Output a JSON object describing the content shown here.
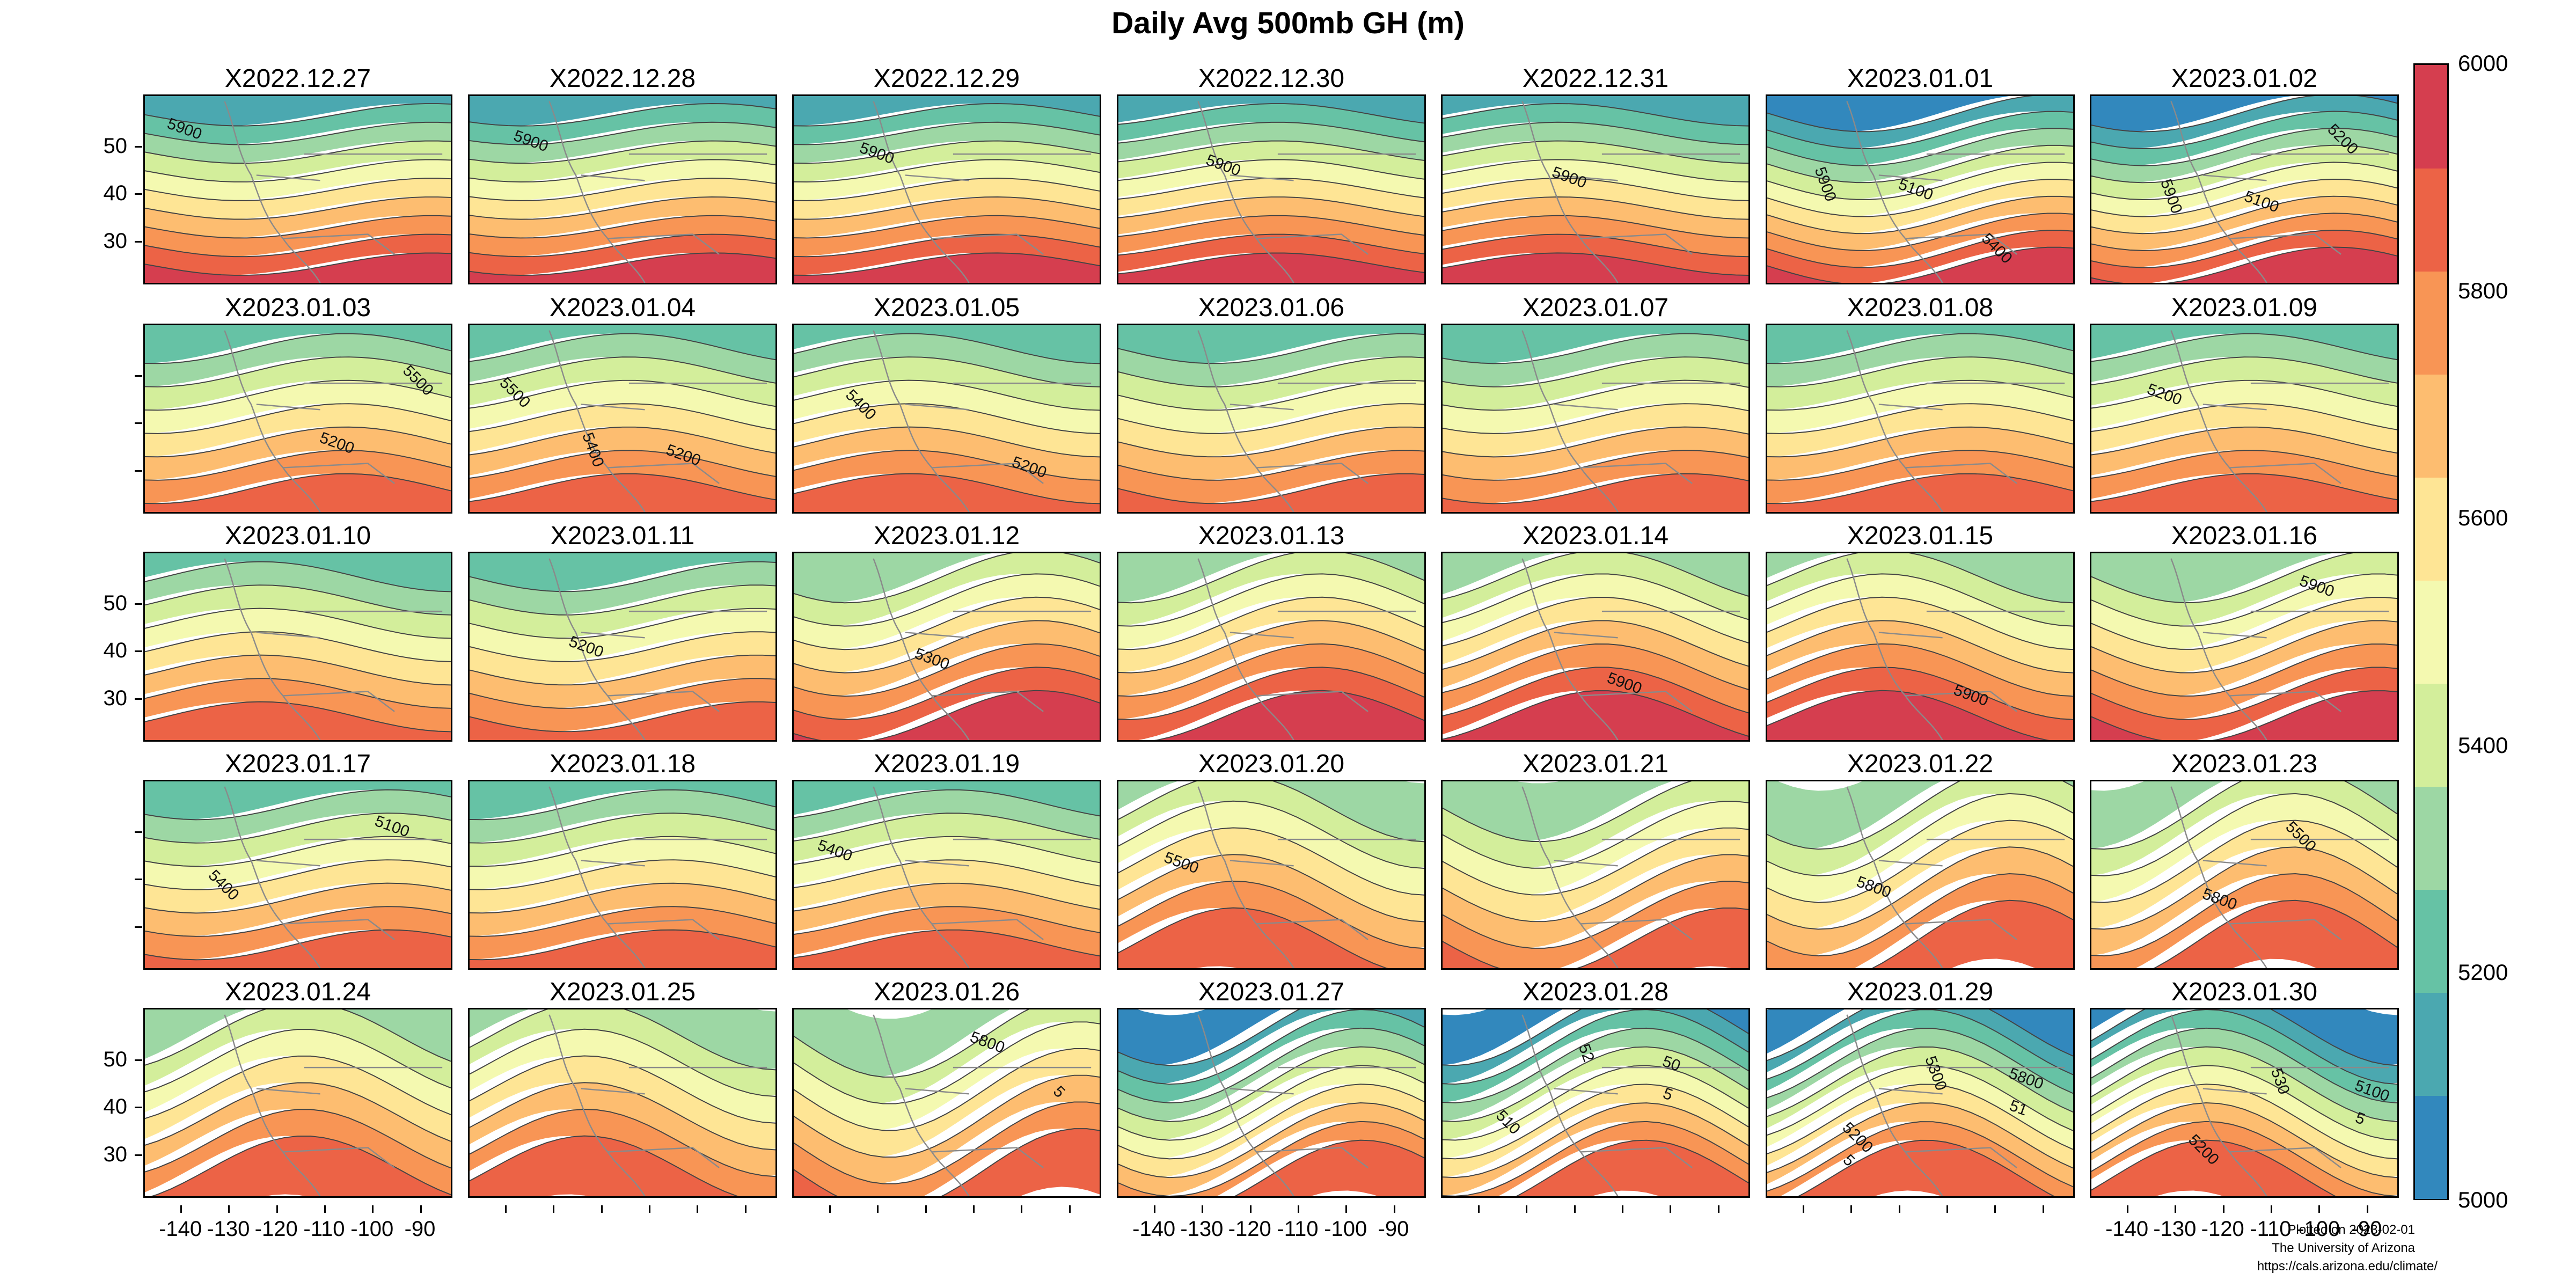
{
  "title": "Daily Avg 500mb GH (m)",
  "panels": [
    {
      "label": "X2022.12.27",
      "style": 0,
      "contours": [
        "5900"
      ]
    },
    {
      "label": "X2022.12.28",
      "style": 0,
      "contours": [
        "5900"
      ]
    },
    {
      "label": "X2022.12.29",
      "style": 0,
      "contours": [
        "5900"
      ]
    },
    {
      "label": "X2022.12.30",
      "style": 0,
      "contours": [
        "5900"
      ]
    },
    {
      "label": "X2022.12.31",
      "style": 0,
      "contours": [
        "5900"
      ]
    },
    {
      "label": "X2023.01.01",
      "style": 1,
      "contours": [
        "5100",
        "5400",
        "5900"
      ]
    },
    {
      "label": "X2023.01.02",
      "style": 1,
      "contours": [
        "5100",
        "5200",
        "5900"
      ]
    },
    {
      "label": "X2023.01.03",
      "style": 2,
      "contours": [
        "5200",
        "5500"
      ]
    },
    {
      "label": "X2023.01.04",
      "style": 2,
      "contours": [
        "5200",
        "5500",
        "5400"
      ]
    },
    {
      "label": "X2023.01.05",
      "style": 2,
      "contours": [
        "5200",
        "5400"
      ]
    },
    {
      "label": "X2023.01.06",
      "style": 2,
      "contours": []
    },
    {
      "label": "X2023.01.07",
      "style": 2,
      "contours": []
    },
    {
      "label": "X2023.01.08",
      "style": 2,
      "contours": []
    },
    {
      "label": "X2023.01.09",
      "style": 2,
      "contours": [
        "5200"
      ]
    },
    {
      "label": "X2023.01.10",
      "style": 2,
      "contours": []
    },
    {
      "label": "X2023.01.11",
      "style": 2,
      "contours": [
        "5200"
      ]
    },
    {
      "label": "X2023.01.12",
      "style": 3,
      "contours": [
        "5300"
      ]
    },
    {
      "label": "X2023.01.13",
      "style": 3,
      "contours": []
    },
    {
      "label": "X2023.01.14",
      "style": 3,
      "contours": [
        "5900"
      ]
    },
    {
      "label": "X2023.01.15",
      "style": 3,
      "contours": [
        "5900"
      ]
    },
    {
      "label": "X2023.01.16",
      "style": 3,
      "contours": [
        "5900"
      ]
    },
    {
      "label": "X2023.01.17",
      "style": 2,
      "contours": [
        "5100",
        "5400"
      ]
    },
    {
      "label": "X2023.01.18",
      "style": 2,
      "contours": []
    },
    {
      "label": "X2023.01.19",
      "style": 2,
      "contours": [
        "5400"
      ]
    },
    {
      "label": "X2023.01.20",
      "style": 4,
      "contours": [
        "5500"
      ]
    },
    {
      "label": "X2023.01.21",
      "style": 4,
      "contours": []
    },
    {
      "label": "X2023.01.22",
      "style": 5,
      "contours": [
        "5800"
      ]
    },
    {
      "label": "X2023.01.23",
      "style": 5,
      "contours": [
        "5800",
        "5500"
      ]
    },
    {
      "label": "X2023.01.24",
      "style": 4,
      "contours": []
    },
    {
      "label": "X2023.01.25",
      "style": 4,
      "contours": []
    },
    {
      "label": "X2023.01.26",
      "style": 5,
      "contours": [
        "5800",
        "5"
      ]
    },
    {
      "label": "X2023.01.27",
      "style": 6,
      "contours": []
    },
    {
      "label": "X2023.01.28",
      "style": 6,
      "contours": [
        "50",
        "510",
        "52",
        "5"
      ]
    },
    {
      "label": "X2023.01.29",
      "style": 6,
      "contours": [
        "5800",
        "5200",
        "5300",
        "51",
        "5"
      ]
    },
    {
      "label": "X2023.01.30",
      "style": 6,
      "contours": [
        "5100",
        "5200",
        "530",
        "5"
      ]
    }
  ],
  "y_ticks": [
    "50",
    "40",
    "30"
  ],
  "x_ticks": [
    "-140",
    "-130",
    "-120",
    "-110",
    "-100",
    "-90"
  ],
  "colorbar": {
    "min": 5000,
    "max": 6000,
    "labels": [
      "6000",
      "5800",
      "5600",
      "5400",
      "5200",
      "5000"
    ],
    "colors": [
      "#3288bd",
      "#4ba8b0",
      "#66c2a5",
      "#9dd7a4",
      "#d3ee9b",
      "#f4f9b0",
      "#fee595",
      "#fdbd70",
      "#f89555",
      "#ec6346",
      "#d53e4f"
    ]
  },
  "credits": {
    "line1": "Plotted on 2023-02-01",
    "line2": "The University of Arizona",
    "line3": "https://cals.arizona.edu/climate/"
  }
}
